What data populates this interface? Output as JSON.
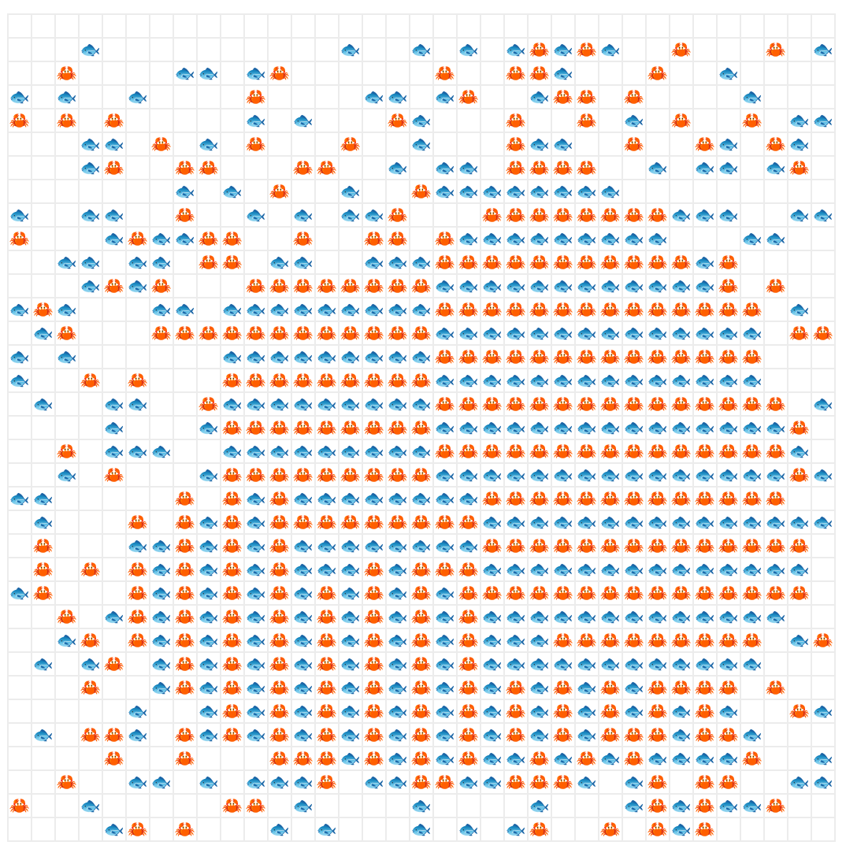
{
  "grid": {
    "rows": [
      [
        null,
        null,
        null,
        null,
        null,
        null,
        null,
        null,
        null,
        null,
        null,
        null,
        null,
        null,
        null,
        null,
        null,
        null,
        null,
        null,
        null,
        null,
        null,
        null,
        null,
        null,
        null,
        null,
        null,
        null,
        null,
        null,
        null,
        null,
        null
      ],
      [
        null,
        null,
        null,
        "🐟",
        null,
        null,
        null,
        null,
        null,
        null,
        null,
        null,
        null,
        null,
        "🐟",
        null,
        null,
        "🐟",
        null,
        "🐟",
        null,
        "🐟",
        "🦀",
        "🐟",
        "🦀",
        "🐟",
        null,
        null,
        "🦀",
        null,
        null,
        null,
        "🦀",
        null,
        "🐟"
      ],
      [
        null,
        null,
        "🦀",
        null,
        null,
        null,
        null,
        "🐟",
        "🐟",
        null,
        "🐟",
        "🦀",
        null,
        null,
        null,
        null,
        null,
        null,
        "🦀",
        null,
        null,
        "🦀",
        "🦀",
        "🐟",
        null,
        null,
        null,
        "🦀",
        null,
        null,
        "🐟",
        null,
        null,
        null,
        null
      ],
      [
        "🐟",
        null,
        "🐟",
        null,
        null,
        "🐟",
        null,
        null,
        null,
        null,
        "🦀",
        null,
        null,
        null,
        null,
        "🐟",
        "🐟",
        null,
        "🐟",
        "🦀",
        null,
        null,
        "🐟",
        "🦀",
        "🦀",
        null,
        "🦀",
        null,
        null,
        null,
        null,
        "🐟",
        null,
        null,
        null
      ],
      [
        "🦀",
        null,
        "🦀",
        null,
        "🦀",
        null,
        null,
        null,
        null,
        null,
        "🐟",
        null,
        "🐟",
        null,
        null,
        null,
        "🦀",
        "🐟",
        null,
        null,
        null,
        "🦀",
        null,
        null,
        "🦀",
        null,
        "🐟",
        null,
        "🦀",
        null,
        null,
        "🦀",
        null,
        "🐟",
        "🐟"
      ],
      [
        null,
        null,
        null,
        "🐟",
        "🐟",
        null,
        "🦀",
        null,
        "🐟",
        null,
        "🦀",
        null,
        null,
        null,
        "🦀",
        null,
        null,
        "🐟",
        null,
        null,
        null,
        "🦀",
        "🐟",
        "🐟",
        null,
        null,
        "🦀",
        null,
        null,
        "🦀",
        "🐟",
        null,
        "🦀",
        "🐟",
        null
      ],
      [
        null,
        null,
        null,
        "🐟",
        "🦀",
        null,
        null,
        "🦀",
        "🦀",
        null,
        null,
        null,
        "🦀",
        "🦀",
        null,
        null,
        "🐟",
        null,
        "🐟",
        "🐟",
        null,
        "🦀",
        "🦀",
        "🦀",
        "🦀",
        null,
        null,
        "🐟",
        null,
        "🐟",
        "🐟",
        null,
        "🐟",
        "🦀",
        null
      ],
      [
        null,
        null,
        null,
        null,
        null,
        null,
        null,
        "🐟",
        null,
        "🐟",
        null,
        "🦀",
        null,
        null,
        "🐟",
        null,
        null,
        "🦀",
        "🐟",
        "🐟",
        "🐟",
        "🐟",
        "🐟",
        "🐟",
        "🐟",
        "🐟",
        null,
        null,
        null,
        null,
        null,
        null,
        null,
        null,
        null
      ],
      [
        "🐟",
        null,
        null,
        "🐟",
        "🐟",
        null,
        null,
        "🦀",
        null,
        null,
        "🐟",
        null,
        "🐟",
        null,
        "🐟",
        "🐟",
        "🦀",
        null,
        null,
        null,
        "🦀",
        "🦀",
        "🦀",
        "🦀",
        "🦀",
        "🦀",
        "🦀",
        "🦀",
        "🐟",
        "🐟",
        "🐟",
        null,
        null,
        "🐟",
        "🐟"
      ],
      [
        "🦀",
        null,
        null,
        null,
        "🐟",
        "🦀",
        "🐟",
        "🐟",
        "🦀",
        "🦀",
        null,
        null,
        "🦀",
        null,
        null,
        "🦀",
        "🦀",
        null,
        "🦀",
        "🐟",
        "🐟",
        "🐟",
        "🐟",
        "🐟",
        "🐟",
        "🐟",
        "🐟",
        "🐟",
        null,
        null,
        null,
        "🐟",
        "🐟",
        null,
        null
      ],
      [
        null,
        null,
        "🐟",
        "🐟",
        null,
        "🐟",
        "🐟",
        null,
        "🦀",
        "🦀",
        null,
        "🐟",
        "🐟",
        null,
        null,
        "🐟",
        "🐟",
        "🐟",
        "🦀",
        "🦀",
        "🦀",
        "🦀",
        "🦀",
        "🦀",
        "🦀",
        "🦀",
        "🦀",
        "🦀",
        "🦀",
        "🐟",
        "🦀",
        null,
        null,
        null,
        null
      ],
      [
        null,
        null,
        null,
        "🐟",
        "🦀",
        "🐟",
        "🦀",
        null,
        null,
        null,
        "🦀",
        "🦀",
        "🦀",
        "🦀",
        "🦀",
        "🦀",
        "🦀",
        "🦀",
        "🐟",
        "🐟",
        "🐟",
        "🐟",
        "🐟",
        "🐟",
        "🐟",
        "🐟",
        "🐟",
        "🐟",
        "🐟",
        "🐟",
        "🦀",
        null,
        "🦀",
        null,
        null
      ],
      [
        "🐟",
        "🦀",
        "🐟",
        null,
        null,
        null,
        "🐟",
        "🐟",
        null,
        "🐟",
        "🐟",
        "🐟",
        "🐟",
        "🐟",
        "🐟",
        "🐟",
        "🐟",
        "🐟",
        "🦀",
        "🦀",
        "🦀",
        "🦀",
        "🦀",
        "🦀",
        "🦀",
        "🦀",
        "🦀",
        "🦀",
        "🦀",
        "🦀",
        "🦀",
        "🦀",
        null,
        "🐟",
        null
      ],
      [
        null,
        "🐟",
        "🦀",
        null,
        null,
        null,
        "🦀",
        "🦀",
        "🦀",
        "🦀",
        "🦀",
        "🦀",
        "🦀",
        "🦀",
        "🦀",
        "🦀",
        "🦀",
        "🦀",
        "🐟",
        "🐟",
        "🐟",
        "🐟",
        "🐟",
        "🐟",
        "🐟",
        "🐟",
        "🐟",
        "🐟",
        "🐟",
        "🐟",
        "🐟",
        "🐟",
        null,
        "🦀",
        "🦀"
      ],
      [
        "🐟",
        null,
        "🐟",
        null,
        null,
        null,
        null,
        null,
        null,
        "🐟",
        "🐟",
        "🐟",
        "🐟",
        "🐟",
        "🐟",
        "🐟",
        "🐟",
        "🐟",
        "🦀",
        "🦀",
        "🦀",
        "🦀",
        "🦀",
        "🦀",
        "🦀",
        "🦀",
        "🦀",
        "🦀",
        "🦀",
        "🦀",
        "🦀",
        "🦀",
        null,
        null,
        null
      ],
      [
        "🐟",
        null,
        null,
        "🦀",
        null,
        "🦀",
        null,
        null,
        null,
        "🦀",
        "🦀",
        "🦀",
        "🦀",
        "🦀",
        "🦀",
        "🦀",
        "🦀",
        "🦀",
        "🐟",
        "🐟",
        "🐟",
        "🐟",
        "🐟",
        "🐟",
        "🐟",
        "🐟",
        "🐟",
        "🐟",
        "🐟",
        "🐟",
        "🐟",
        "🐟",
        null,
        null,
        null
      ],
      [
        null,
        "🐟",
        null,
        null,
        "🐟",
        "🐟",
        null,
        null,
        "🦀",
        "🐟",
        "🐟",
        "🐟",
        "🐟",
        "🐟",
        "🐟",
        "🐟",
        "🐟",
        "🐟",
        "🦀",
        "🦀",
        "🦀",
        "🦀",
        "🦀",
        "🦀",
        "🦀",
        "🦀",
        "🦀",
        "🦀",
        "🦀",
        "🦀",
        "🦀",
        "🦀",
        "🦀",
        null,
        "🐟"
      ],
      [
        null,
        null,
        null,
        null,
        "🐟",
        null,
        null,
        null,
        "🐟",
        "🦀",
        "🦀",
        "🦀",
        "🦀",
        "🦀",
        "🦀",
        "🦀",
        "🦀",
        "🦀",
        "🐟",
        "🐟",
        "🐟",
        "🐟",
        "🐟",
        "🐟",
        "🐟",
        "🐟",
        "🐟",
        "🐟",
        "🐟",
        "🐟",
        "🐟",
        "🐟",
        "🐟",
        "🦀",
        null
      ],
      [
        null,
        null,
        "🦀",
        null,
        "🐟",
        "🐟",
        "🐟",
        null,
        null,
        "🐟",
        "🐟",
        "🐟",
        "🐟",
        "🐟",
        "🐟",
        "🐟",
        "🐟",
        "🐟",
        "🦀",
        "🦀",
        "🦀",
        "🦀",
        "🦀",
        "🦀",
        "🦀",
        "🦀",
        "🦀",
        "🦀",
        "🦀",
        "🦀",
        "🦀",
        "🦀",
        "🦀",
        "🐟",
        null
      ],
      [
        null,
        null,
        "🐟",
        null,
        "🦀",
        null,
        null,
        null,
        "🐟",
        "🦀",
        "🦀",
        "🦀",
        "🦀",
        "🦀",
        "🦀",
        "🦀",
        "🦀",
        "🦀",
        "🐟",
        "🐟",
        "🐟",
        "🐟",
        "🐟",
        "🐟",
        "🐟",
        "🐟",
        "🐟",
        "🐟",
        "🐟",
        "🐟",
        "🐟",
        "🐟",
        "🐟",
        "🦀",
        "🐟"
      ],
      [
        "🐟",
        "🐟",
        null,
        null,
        null,
        null,
        null,
        "🦀",
        null,
        "🦀",
        "🐟",
        "🦀",
        "🐟",
        "🐟",
        "🐟",
        "🐟",
        "🐟",
        "🐟",
        "🐟",
        "🐟",
        "🦀",
        "🦀",
        "🦀",
        "🦀",
        "🦀",
        "🦀",
        "🦀",
        "🦀",
        "🦀",
        "🦀",
        "🦀",
        "🦀",
        "🦀",
        null,
        null
      ],
      [
        null,
        "🐟",
        null,
        null,
        null,
        "🦀",
        null,
        "🦀",
        "🐟",
        "🦀",
        "🐟",
        "🦀",
        "🦀",
        "🦀",
        "🦀",
        "🦀",
        "🦀",
        "🦀",
        "🦀",
        "🦀",
        "🐟",
        "🐟",
        "🐟",
        "🐟",
        "🐟",
        "🐟",
        "🐟",
        "🐟",
        "🐟",
        "🐟",
        "🐟",
        "🐟",
        "🐟",
        "🐟",
        "🐟"
      ],
      [
        null,
        "🦀",
        null,
        null,
        null,
        "🐟",
        "🐟",
        "🦀",
        "🐟",
        "🦀",
        "🐟",
        "🦀",
        "🐟",
        "🐟",
        "🐟",
        "🐟",
        "🐟",
        "🐟",
        "🐟",
        "🐟",
        "🦀",
        "🦀",
        "🦀",
        "🦀",
        "🦀",
        "🦀",
        "🦀",
        "🦀",
        "🦀",
        "🦀",
        "🦀",
        "🦀",
        "🦀",
        "🦀",
        null
      ],
      [
        null,
        "🦀",
        null,
        "🦀",
        null,
        "🦀",
        "🐟",
        "🦀",
        "🐟",
        "🦀",
        "🐟",
        "🦀",
        "🐟",
        "🐟",
        "🐟",
        "🦀",
        "🐟",
        "🦀",
        "🦀",
        "🦀",
        "🐟",
        "🐟",
        "🐟",
        "🐟",
        "🐟",
        "🐟",
        "🐟",
        "🐟",
        "🐟",
        "🐟",
        "🐟",
        "🐟",
        "🐟",
        "🐟",
        null
      ],
      [
        "🐟",
        "🦀",
        null,
        null,
        null,
        "🦀",
        "🐟",
        "🦀",
        "🐟",
        "🦀",
        "🐟",
        "🦀",
        "🐟",
        "🦀",
        "🐟",
        "🦀",
        "🐟",
        "🦀",
        "🐟",
        "🦀",
        "🦀",
        "🦀",
        "🦀",
        "🦀",
        "🦀",
        "🦀",
        "🦀",
        "🦀",
        "🦀",
        "🦀",
        "🦀",
        "🦀",
        "🦀",
        "🦀",
        null
      ],
      [
        null,
        null,
        "🦀",
        null,
        "🐟",
        "🦀",
        "🐟",
        "🦀",
        "🐟",
        "🦀",
        "🐟",
        "🦀",
        "🐟",
        "🦀",
        "🐟",
        "🦀",
        "🐟",
        "🦀",
        "🐟",
        "🦀",
        "🐟",
        "🐟",
        "🐟",
        "🐟",
        "🐟",
        "🐟",
        "🐟",
        "🐟",
        "🐟",
        "🐟",
        "🐟",
        "🐟",
        "🐟",
        null,
        null
      ],
      [
        null,
        null,
        "🐟",
        "🦀",
        null,
        "🦀",
        "🐟",
        "🦀",
        "🐟",
        "🦀",
        "🐟",
        "🦀",
        "🐟",
        "🦀",
        "🐟",
        "🦀",
        "🐟",
        "🦀",
        "🐟",
        "🦀",
        "🐟",
        "🐟",
        "🐟",
        "🦀",
        "🦀",
        "🦀",
        "🦀",
        "🦀",
        "🦀",
        "🦀",
        "🦀",
        "🦀",
        null,
        "🐟",
        "🦀"
      ],
      [
        null,
        "🐟",
        null,
        "🐟",
        "🦀",
        null,
        "🐟",
        "🦀",
        "🐟",
        "🦀",
        "🐟",
        "🦀",
        "🐟",
        "🦀",
        "🐟",
        "🦀",
        "🐟",
        "🦀",
        "🐟",
        "🦀",
        "🐟",
        "🐟",
        "🐟",
        "🐟",
        "🐟",
        "🐟",
        "🐟",
        "🐟",
        "🐟",
        "🐟",
        "🐟",
        "🐟",
        null,
        null,
        null
      ],
      [
        null,
        null,
        null,
        "🦀",
        null,
        null,
        "🐟",
        "🦀",
        "🐟",
        "🦀",
        "🐟",
        "🦀",
        "🐟",
        "🦀",
        "🐟",
        "🦀",
        "🐟",
        "🦀",
        "🐟",
        "🦀",
        "🐟",
        "🦀",
        "🐟",
        "🦀",
        "🐟",
        "🦀",
        "🐟",
        "🦀",
        "🦀",
        "🦀",
        "🦀",
        null,
        "🦀",
        null,
        null
      ],
      [
        null,
        null,
        null,
        null,
        null,
        "🐟",
        null,
        null,
        "🐟",
        "🦀",
        "🐟",
        "🦀",
        "🐟",
        "🦀",
        "🐟",
        "🦀",
        "🐟",
        "🦀",
        "🐟",
        "🦀",
        "🐟",
        "🦀",
        "🐟",
        "🦀",
        "🐟",
        "🦀",
        "🐟",
        "🦀",
        "🐟",
        "🦀",
        "🐟",
        null,
        null,
        "🦀",
        "🐟"
      ],
      [
        null,
        "🐟",
        null,
        "🦀",
        "🦀",
        "🐟",
        null,
        "🦀",
        "🐟",
        "🦀",
        "🐟",
        "🦀",
        "🐟",
        "🦀",
        "🐟",
        "🦀",
        "🐟",
        "🦀",
        "🐟",
        "🦀",
        "🐟",
        "🦀",
        "🐟",
        "🦀",
        "🐟",
        "🦀",
        "🦀",
        "🦀",
        "🐟",
        "🦀",
        "🦀",
        "🐟",
        null,
        null,
        null
      ],
      [
        null,
        null,
        null,
        null,
        "🦀",
        null,
        null,
        "🦀",
        null,
        null,
        null,
        "🦀",
        "🦀",
        "🦀",
        "🐟",
        "🦀",
        "🐟",
        "🦀",
        "🐟",
        "🦀",
        "🐟",
        "🐟",
        "🦀",
        "🐟",
        "🦀",
        "🐟",
        "🦀",
        "🐟",
        "🐟",
        "🐟",
        "🐟",
        "🦀",
        null,
        null,
        "🐟"
      ],
      [
        null,
        null,
        "🦀",
        null,
        null,
        "🐟",
        "🐟",
        null,
        "🐟",
        null,
        "🐟",
        "🐟",
        "🐟",
        "🦀",
        null,
        "🐟",
        "🐟",
        "🦀",
        "🦀",
        "🐟",
        "🐟",
        "🦀",
        "🦀",
        "🦀",
        "🐟",
        null,
        "🐟",
        "🦀",
        null,
        "🦀",
        "🦀",
        null,
        null,
        "🐟",
        "🐟"
      ],
      [
        "🦀",
        null,
        null,
        "🐟",
        null,
        null,
        null,
        null,
        null,
        "🦀",
        "🦀",
        null,
        "🐟",
        null,
        null,
        null,
        null,
        "🐟",
        null,
        null,
        null,
        null,
        "🐟",
        null,
        null,
        null,
        "🐟",
        "🦀",
        "🐟",
        "🦀",
        "🐟",
        "🐟",
        "🦀",
        null,
        null
      ],
      [
        null,
        null,
        null,
        null,
        "🐟",
        "🦀",
        null,
        "🦀",
        null,
        null,
        null,
        "🐟",
        null,
        "🐟",
        null,
        null,
        null,
        "🐟",
        null,
        "🐟",
        null,
        "🐟",
        "🦀",
        null,
        null,
        "🦀",
        null,
        "🦀",
        "🐟",
        "🦀",
        null,
        null,
        null,
        null,
        null
      ]
    ]
  }
}
